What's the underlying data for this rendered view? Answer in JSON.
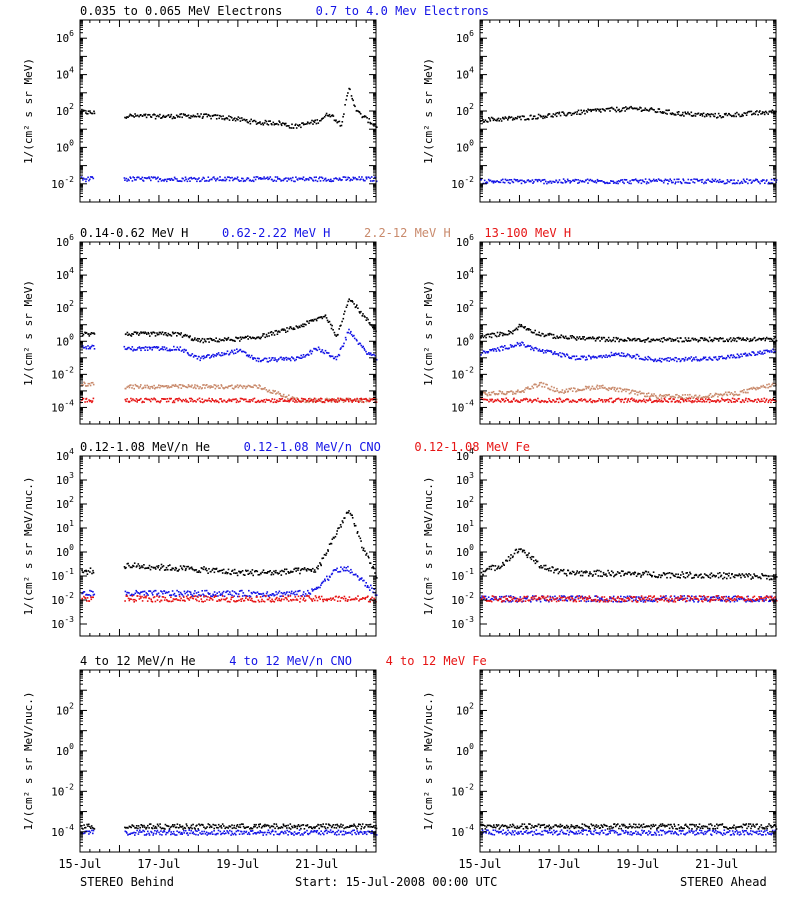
{
  "colors": {
    "black": "#000000",
    "blue": "#1414e6",
    "tan": "#c98a6c",
    "red": "#e61414"
  },
  "footer": {
    "left": "STEREO Behind",
    "center": "Start: 15-Jul-2008 00:00 UTC",
    "right": "STEREO Ahead"
  },
  "x_axis": {
    "range_days": [
      15,
      22.5
    ],
    "tick_labels": [
      "15-Jul",
      "17-Jul",
      "19-Jul",
      "21-Jul"
    ],
    "tick_days": [
      15,
      17,
      19,
      21
    ]
  },
  "chart_data": [
    {
      "type": "scatter",
      "panel_row": 1,
      "legend": [
        {
          "text": "0.035 to 0.065 MeV Electrons",
          "color": "black"
        },
        {
          "text": "0.7 to 4.0 Mev Electrons",
          "color": "blue"
        }
      ],
      "ylabel": "1/(cm² s sr MeV)",
      "ylim_log10": [
        -3,
        7
      ],
      "ytick_exponents": [
        -2,
        0,
        2,
        4,
        6
      ],
      "behind": {
        "gaps": [
          [
            15.35,
            16.1
          ]
        ],
        "series": [
          {
            "name": "0.035 to 0.065 MeV Electrons",
            "color": "black",
            "points": [
              [
                15.0,
                100
              ],
              [
                16.1,
                60
              ],
              [
                17.0,
                55
              ],
              [
                18.0,
                60
              ],
              [
                18.8,
                45
              ],
              [
                19.5,
                25
              ],
              [
                20.0,
                25
              ],
              [
                20.4,
                15
              ],
              [
                21.0,
                30
              ],
              [
                21.3,
                80
              ],
              [
                21.6,
                20
              ],
              [
                21.8,
                2000
              ],
              [
                22.0,
                100
              ],
              [
                22.5,
                15
              ]
            ]
          },
          {
            "name": "0.7 to 4.0 Mev Electrons",
            "color": "blue",
            "points": [
              [
                15.0,
                0.02
              ],
              [
                22.5,
                0.02
              ]
            ]
          }
        ]
      },
      "ahead": {
        "gaps": [],
        "series": [
          {
            "name": "0.035 to 0.065 MeV Electrons",
            "color": "black",
            "points": [
              [
                15.0,
                35
              ],
              [
                16.0,
                45
              ],
              [
                17.0,
                70
              ],
              [
                18.0,
                120
              ],
              [
                19.0,
                150
              ],
              [
                20.0,
                80
              ],
              [
                21.0,
                60
              ],
              [
                22.5,
                100
              ]
            ]
          },
          {
            "name": "0.7 to 4.0 Mev Electrons",
            "color": "blue",
            "points": [
              [
                15.0,
                0.015
              ],
              [
                22.5,
                0.015
              ]
            ]
          }
        ]
      }
    },
    {
      "type": "scatter",
      "panel_row": 2,
      "legend": [
        {
          "text": "0.14-0.62 MeV H",
          "color": "black"
        },
        {
          "text": "0.62-2.22 MeV H",
          "color": "blue"
        },
        {
          "text": "2.2-12 MeV H",
          "color": "tan"
        },
        {
          "text": "13-100 MeV H",
          "color": "red"
        }
      ],
      "ylabel": "1/(cm² s sr MeV)",
      "ylim_log10": [
        -5,
        6
      ],
      "ytick_exponents": [
        -4,
        -2,
        0,
        2,
        4,
        6
      ],
      "behind": {
        "gaps": [
          [
            15.35,
            16.1
          ]
        ],
        "series": [
          {
            "name": "0.14-0.62 MeV H",
            "color": "black",
            "points": [
              [
                15.0,
                3
              ],
              [
                16.1,
                3
              ],
              [
                17.5,
                3
              ],
              [
                18.0,
                1.2
              ],
              [
                19.0,
                1.5
              ],
              [
                19.5,
                2
              ],
              [
                20.5,
                8
              ],
              [
                21.2,
                40
              ],
              [
                21.5,
                2
              ],
              [
                21.8,
                500
              ],
              [
                22.2,
                30
              ],
              [
                22.5,
                5
              ]
            ]
          },
          {
            "name": "0.62-2.22 MeV H",
            "color": "blue",
            "points": [
              [
                15.0,
                0.5
              ],
              [
                16.1,
                0.4
              ],
              [
                17.5,
                0.4
              ],
              [
                18.0,
                0.1
              ],
              [
                19.0,
                0.3
              ],
              [
                19.5,
                0.08
              ],
              [
                20.5,
                0.1
              ],
              [
                21.0,
                0.4
              ],
              [
                21.5,
                0.1
              ],
              [
                21.8,
                5
              ],
              [
                22.2,
                0.3
              ],
              [
                22.5,
                0.1
              ]
            ]
          },
          {
            "name": "2.2-12 MeV H",
            "color": "tan",
            "points": [
              [
                15.0,
                0.003
              ],
              [
                16.1,
                0.002
              ],
              [
                18.0,
                0.002
              ],
              [
                19.5,
                0.002
              ],
              [
                20.5,
                0.0003
              ],
              [
                22.5,
                0.0003
              ]
            ]
          },
          {
            "name": "13-100 MeV H",
            "color": "red",
            "points": [
              [
                15.0,
                0.0003
              ],
              [
                22.5,
                0.0003
              ]
            ]
          }
        ]
      },
      "ahead": {
        "gaps": [],
        "series": [
          {
            "name": "0.14-0.62 MeV H",
            "color": "black",
            "points": [
              [
                15.0,
                2
              ],
              [
                15.8,
                4
              ],
              [
                16.0,
                10
              ],
              [
                16.5,
                3
              ],
              [
                17.0,
                2
              ],
              [
                18.0,
                1.5
              ],
              [
                19.0,
                1.3
              ],
              [
                20.0,
                1.4
              ],
              [
                22.5,
                1.5
              ]
            ]
          },
          {
            "name": "0.62-2.22 MeV H",
            "color": "blue",
            "points": [
              [
                15.0,
                0.2
              ],
              [
                16.0,
                0.8
              ],
              [
                16.5,
                0.3
              ],
              [
                17.5,
                0.1
              ],
              [
                18.5,
                0.2
              ],
              [
                19.5,
                0.08
              ],
              [
                20.5,
                0.1
              ],
              [
                21.0,
                0.1
              ],
              [
                22.5,
                0.3
              ]
            ]
          },
          {
            "name": "2.2-12 MeV H",
            "color": "tan",
            "points": [
              [
                15.0,
                0.0007
              ],
              [
                16.0,
                0.001
              ],
              [
                16.5,
                0.003
              ],
              [
                17.0,
                0.001
              ],
              [
                18.0,
                0.002
              ],
              [
                19.0,
                0.0008
              ],
              [
                19.5,
                0.0005
              ],
              [
                20.5,
                0.0005
              ],
              [
                21.5,
                0.0008
              ],
              [
                22.5,
                0.003
              ]
            ]
          },
          {
            "name": "13-100 MeV H",
            "color": "red",
            "points": [
              [
                15.0,
                0.0003
              ],
              [
                22.5,
                0.0003
              ]
            ]
          }
        ]
      }
    },
    {
      "type": "scatter",
      "panel_row": 3,
      "legend": [
        {
          "text": "0.12-1.08 MeV/n He",
          "color": "black"
        },
        {
          "text": "0.12-1.08 MeV/n CNO",
          "color": "blue"
        },
        {
          "text": "0.12-1.08 MeV Fe",
          "color": "red"
        }
      ],
      "ylabel": "1/(cm² s sr MeV/nuc.)",
      "ylim_log10": [
        -3.5,
        4
      ],
      "ytick_exponents": [
        -3,
        -2,
        -1,
        0,
        1,
        2,
        3,
        4
      ],
      "behind": {
        "gaps": [
          [
            15.35,
            16.1
          ]
        ],
        "series": [
          {
            "name": "0.12-1.08 MeV/n He",
            "color": "black",
            "points": [
              [
                15.0,
                0.15
              ],
              [
                16.1,
                0.3
              ],
              [
                17.0,
                0.25
              ],
              [
                18.0,
                0.2
              ],
              [
                19.0,
                0.15
              ],
              [
                20.0,
                0.15
              ],
              [
                21.0,
                0.2
              ],
              [
                21.5,
                8
              ],
              [
                21.8,
                60
              ],
              [
                22.2,
                1
              ],
              [
                22.5,
                0.1
              ]
            ]
          },
          {
            "name": "0.12-1.08 MeV/n CNO",
            "color": "blue",
            "points": [
              [
                15.0,
                0.02
              ],
              [
                20.8,
                0.02
              ],
              [
                21.5,
                0.2
              ],
              [
                21.8,
                0.2
              ],
              [
                22.5,
                0.02
              ]
            ]
          },
          {
            "name": "0.12-1.08 MeV Fe",
            "color": "red",
            "points": [
              [
                15.0,
                0.012
              ],
              [
                22.5,
                0.012
              ]
            ]
          }
        ]
      },
      "ahead": {
        "gaps": [],
        "series": [
          {
            "name": "0.12-1.08 MeV/n He",
            "color": "black",
            "points": [
              [
                15.0,
                0.15
              ],
              [
                15.5,
                0.3
              ],
              [
                16.0,
                1.5
              ],
              [
                16.5,
                0.3
              ],
              [
                17.0,
                0.15
              ],
              [
                22.5,
                0.1
              ]
            ]
          },
          {
            "name": "0.12-1.08 MeV/n CNO",
            "color": "blue",
            "points": [
              [
                15.0,
                0.012
              ],
              [
                22.5,
                0.012
              ]
            ]
          },
          {
            "name": "0.12-1.08 MeV Fe",
            "color": "red",
            "points": [
              [
                15.0,
                0.012
              ],
              [
                22.5,
                0.012
              ]
            ]
          }
        ]
      }
    },
    {
      "type": "scatter",
      "panel_row": 4,
      "legend": [
        {
          "text": "4 to 12 MeV/n He",
          "color": "black"
        },
        {
          "text": "4 to 12 MeV/n CNO",
          "color": "blue"
        },
        {
          "text": "4 to 12 MeV Fe",
          "color": "red"
        }
      ],
      "ylabel": "1/(cm² s sr MeV/nuc.)",
      "ylim_log10": [
        -5,
        4
      ],
      "ytick_exponents": [
        -4,
        -2,
        0,
        2
      ],
      "behind": {
        "gaps": [
          [
            15.35,
            16.1
          ]
        ],
        "series": [
          {
            "name": "4 to 12 MeV/n He",
            "color": "black",
            "points": [
              [
                16.1,
                0.0002
              ],
              [
                22.5,
                0.0002
              ]
            ]
          },
          {
            "name": "4 to 12 MeV/n CNO",
            "color": "blue",
            "points": [
              [
                16.1,
                0.0001
              ],
              [
                22.5,
                0.0001
              ]
            ]
          }
        ]
      },
      "ahead": {
        "gaps": [],
        "series": [
          {
            "name": "4 to 12 MeV/n He",
            "color": "black",
            "points": [
              [
                15.0,
                0.0002
              ],
              [
                22.5,
                0.0002
              ]
            ]
          },
          {
            "name": "4 to 12 MeV/n CNO",
            "color": "blue",
            "points": [
              [
                15.0,
                0.0001
              ],
              [
                22.5,
                0.0001
              ]
            ]
          }
        ]
      }
    }
  ]
}
